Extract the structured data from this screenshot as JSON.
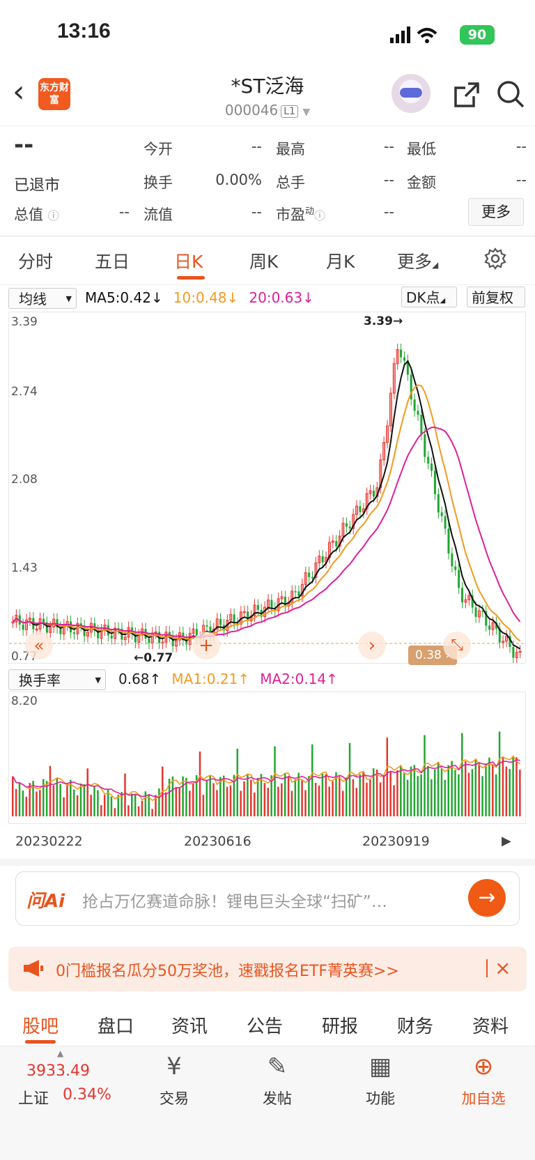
{
  "status_bar": {
    "time": "13:16",
    "battery": "90"
  },
  "header": {
    "back_icon": "chevron-left-icon",
    "app_logo_text": "东方财富",
    "title": "*ST泛海",
    "code": "000046",
    "level": "L1"
  },
  "quote": {
    "price": "--",
    "status": "已退市",
    "fields": [
      {
        "label": "今开",
        "value": "--"
      },
      {
        "label": "最高",
        "value": "--"
      },
      {
        "label": "最低",
        "value": "--"
      },
      {
        "label": "换手",
        "value": "0.00%"
      },
      {
        "label": "总手",
        "value": "--"
      },
      {
        "label": "金额",
        "value": "--"
      },
      {
        "label": "总值",
        "value": "--"
      },
      {
        "label": "流值",
        "value": "--"
      },
      {
        "label": "市盈",
        "value": "--"
      }
    ],
    "pe_superscript": "动",
    "more_label": "更多"
  },
  "period_tabs": [
    "分时",
    "五日",
    "日K",
    "周K",
    "月K",
    "更多"
  ],
  "active_period": "日K",
  "ma_bar": {
    "selector": "均线",
    "ma5": "MA5:0.42",
    "ma10": "10:0.48",
    "ma20": "20:0.63",
    "dk_label": "DK点",
    "adjust_label": "前复权"
  },
  "kline": {
    "y_ticks": [
      "3.39",
      "2.74",
      "2.08",
      "1.43",
      "0.77"
    ],
    "high_label": "3.39",
    "low_label": "0.77",
    "price_tag": "0.38"
  },
  "volume": {
    "selector": "换手率",
    "value": "0.68",
    "ma1": "MA1:0.21",
    "ma2": "MA2:0.14",
    "max_label": "8.20",
    "dates": [
      "20230222",
      "20230616",
      "20230919"
    ]
  },
  "ai": {
    "logo": "问Ai",
    "text": "抢占万亿赛道命脉！锂电巨头全球“扫矿”…"
  },
  "banner": {
    "text": "0门槛报名瓜分50万奖池，速戳报名ETF菁英赛>>"
  },
  "bottom_tabs": [
    "股吧",
    "盘口",
    "资讯",
    "公告",
    "研报",
    "财务",
    "资料"
  ],
  "active_bottom_tab": "股吧",
  "bottom_bar": {
    "index_value": "3933.49",
    "index_name": "上证",
    "index_change": "0.34%",
    "items": [
      "交易",
      "发帖",
      "功能",
      "加自选"
    ]
  },
  "colors": {
    "accent": "#e8541e",
    "up": "#e6352f",
    "down": "#21a630",
    "ma5": "#111111",
    "ma10": "#f39a1e",
    "ma20": "#dd1f9a"
  }
}
